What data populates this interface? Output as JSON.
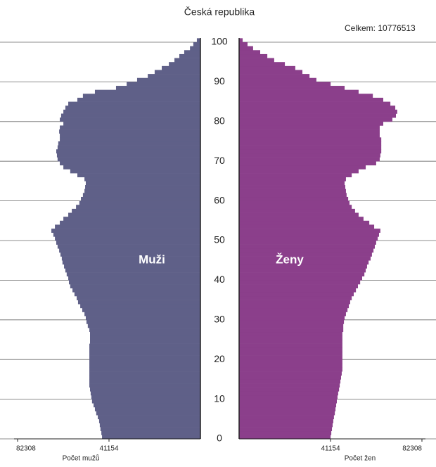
{
  "chart_data": {
    "type": "pyramid",
    "title": "Česká republika",
    "subtitle": "Celkem: 10776513",
    "y": [
      0,
      1,
      2,
      3,
      4,
      5,
      6,
      7,
      8,
      9,
      10,
      11,
      12,
      13,
      14,
      15,
      16,
      17,
      18,
      19,
      20,
      21,
      22,
      23,
      24,
      25,
      26,
      27,
      28,
      29,
      30,
      31,
      32,
      33,
      34,
      35,
      36,
      37,
      38,
      39,
      40,
      41,
      42,
      43,
      44,
      45,
      46,
      47,
      48,
      49,
      50,
      51,
      52,
      53,
      54,
      55,
      56,
      57,
      58,
      59,
      60,
      61,
      62,
      63,
      64,
      65,
      66,
      67,
      68,
      69,
      70,
      71,
      72,
      73,
      74,
      75,
      76,
      77,
      78,
      79,
      80,
      81,
      82,
      83,
      84,
      85,
      86,
      87,
      88,
      89,
      90,
      91,
      92,
      93,
      94,
      95,
      96,
      97,
      98,
      99,
      100
    ],
    "ylim": [
      0,
      100
    ],
    "yticks": [
      0,
      10,
      20,
      30,
      40,
      50,
      60,
      70,
      80,
      90,
      100
    ],
    "xlim": [
      0,
      82308
    ],
    "xticks": [
      41154,
      82308
    ],
    "xlabel_left": "Počet mužů",
    "xlabel_right": "Počet žen",
    "grid": true,
    "series": [
      {
        "name": "Muži",
        "color": "#5f6088",
        "values": [
          44300,
          44600,
          45000,
          45300,
          45600,
          46200,
          46900,
          47500,
          48100,
          48800,
          49100,
          49400,
          49700,
          50000,
          50000,
          50000,
          50000,
          50000,
          50000,
          50000,
          50000,
          50000,
          50000,
          50000,
          49700,
          49700,
          49700,
          50000,
          50700,
          51300,
          51600,
          52200,
          53200,
          54100,
          55100,
          55700,
          56700,
          57600,
          58600,
          59200,
          59500,
          60200,
          60800,
          61400,
          62100,
          62400,
          63000,
          63600,
          64300,
          64900,
          65500,
          66200,
          67100,
          65500,
          63300,
          61700,
          59500,
          57900,
          56000,
          54500,
          53800,
          52900,
          52200,
          51900,
          51600,
          52200,
          55400,
          58600,
          61700,
          63300,
          64300,
          64600,
          64900,
          64300,
          64000,
          63300,
          63300,
          63600,
          63300,
          61700,
          63300,
          62700,
          61700,
          60800,
          59500,
          55400,
          52900,
          47500,
          38000,
          33200,
          28500,
          23700,
          20600,
          17400,
          14200,
          11700,
          9500,
          7300,
          4700,
          3200,
          1600
        ]
      },
      {
        "name": "Ženy",
        "color": "#8b3f8b",
        "values": [
          41200,
          41500,
          41800,
          42100,
          42400,
          42700,
          43100,
          43400,
          43700,
          44000,
          44300,
          44600,
          45000,
          45300,
          45600,
          45900,
          46200,
          46500,
          46500,
          46500,
          46500,
          46500,
          46500,
          46500,
          46500,
          46500,
          46500,
          46900,
          46900,
          47200,
          47500,
          48100,
          48800,
          49400,
          50000,
          50700,
          51600,
          52600,
          53500,
          54500,
          55400,
          56400,
          57000,
          57600,
          58300,
          59200,
          59800,
          60500,
          61100,
          61700,
          62400,
          63000,
          63600,
          60800,
          58600,
          56000,
          53800,
          52200,
          50700,
          49700,
          49100,
          48400,
          48100,
          47800,
          47500,
          48100,
          50700,
          53800,
          57000,
          61700,
          63300,
          63600,
          64000,
          64000,
          64000,
          64000,
          63300,
          63300,
          63300,
          64900,
          69000,
          70600,
          71200,
          70300,
          68100,
          64900,
          60200,
          53800,
          47500,
          41200,
          34800,
          31700,
          28500,
          25300,
          20600,
          15800,
          12700,
          9500,
          6300,
          3800,
          1600
        ]
      }
    ]
  }
}
